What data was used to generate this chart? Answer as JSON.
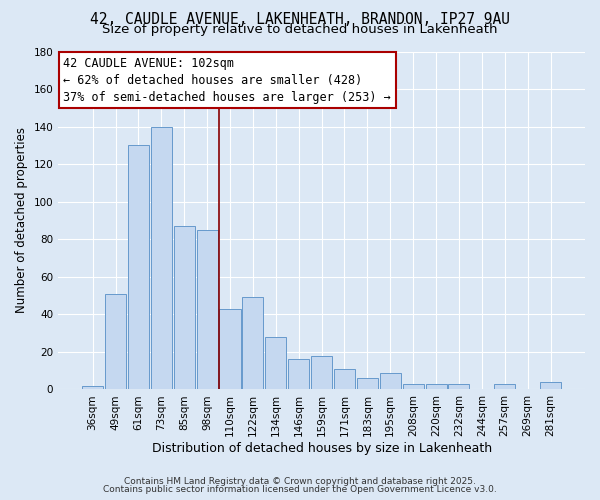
{
  "title": "42, CAUDLE AVENUE, LAKENHEATH, BRANDON, IP27 9AU",
  "subtitle": "Size of property relative to detached houses in Lakenheath",
  "xlabel": "Distribution of detached houses by size in Lakenheath",
  "ylabel": "Number of detached properties",
  "bar_labels": [
    "36sqm",
    "49sqm",
    "61sqm",
    "73sqm",
    "85sqm",
    "98sqm",
    "110sqm",
    "122sqm",
    "134sqm",
    "146sqm",
    "159sqm",
    "171sqm",
    "183sqm",
    "195sqm",
    "208sqm",
    "220sqm",
    "232sqm",
    "244sqm",
    "257sqm",
    "269sqm",
    "281sqm"
  ],
  "bar_values": [
    2,
    51,
    130,
    140,
    87,
    85,
    43,
    49,
    28,
    16,
    18,
    11,
    6,
    9,
    3,
    3,
    3,
    0,
    3,
    0,
    4
  ],
  "bar_color": "#c5d8f0",
  "bar_edge_color": "#6699cc",
  "vline_x": 5.5,
  "vline_color": "#880000",
  "ylim": [
    0,
    180
  ],
  "yticks": [
    0,
    20,
    40,
    60,
    80,
    100,
    120,
    140,
    160,
    180
  ],
  "annotation_title": "42 CAUDLE AVENUE: 102sqm",
  "annotation_line1": "← 62% of detached houses are smaller (428)",
  "annotation_line2": "37% of semi-detached houses are larger (253) →",
  "annotation_box_color": "#ffffff",
  "annotation_box_edge": "#aa0000",
  "background_color": "#dce8f5",
  "grid_color": "#ffffff",
  "footer1": "Contains HM Land Registry data © Crown copyright and database right 2025.",
  "footer2": "Contains public sector information licensed under the Open Government Licence v3.0.",
  "title_fontsize": 10.5,
  "subtitle_fontsize": 9.5,
  "xlabel_fontsize": 9,
  "ylabel_fontsize": 8.5,
  "tick_fontsize": 7.5,
  "annotation_title_fontsize": 8.5,
  "annotation_line_fontsize": 8.5,
  "footer_fontsize": 6.5
}
